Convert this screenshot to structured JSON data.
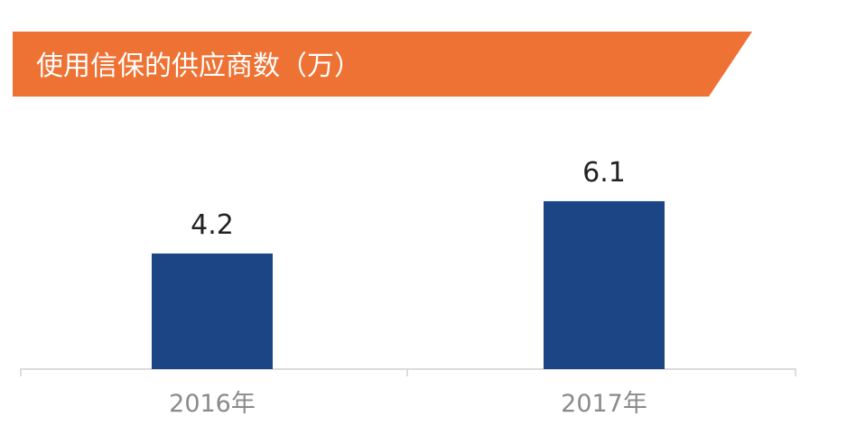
{
  "colors": {
    "banner": "#EE7233",
    "bar": "#1C4585",
    "axis": "#dcdcdc",
    "value_text": "#222222",
    "tick_text": "#8a8a8a"
  },
  "chart_data": {
    "type": "bar",
    "title": "使用信保的供应商数（万）",
    "categories": [
      "2016年",
      "2017年"
    ],
    "values": [
      4.2,
      6.1
    ],
    "value_labels": [
      "4.2",
      "6.1"
    ],
    "xlabel": "",
    "ylabel": "",
    "ylim": [
      0,
      7
    ],
    "grid": false
  }
}
